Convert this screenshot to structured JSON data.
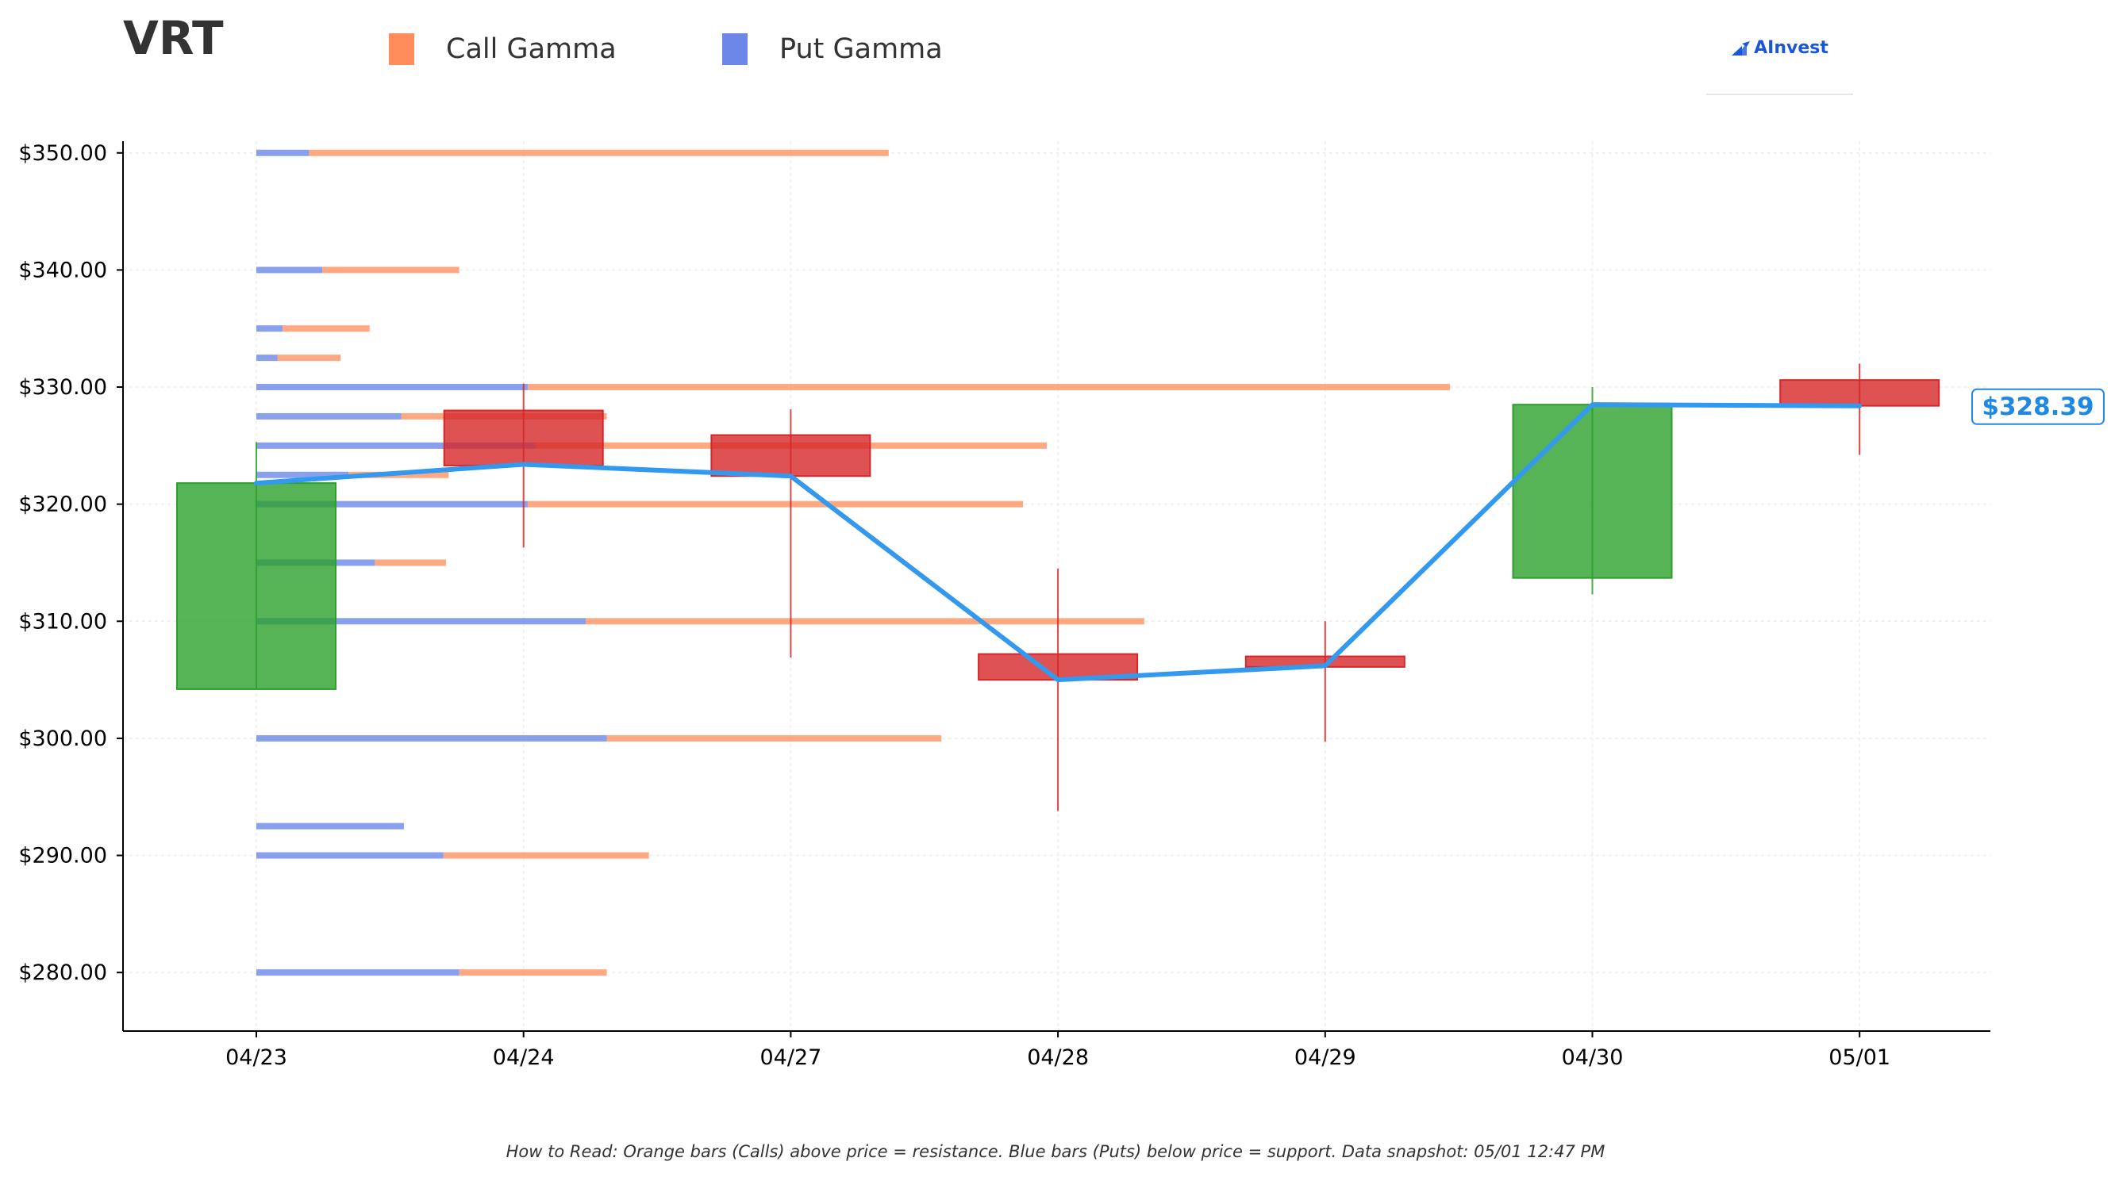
{
  "header": {
    "ticker": "VRT",
    "legend": [
      {
        "label": "Call Gamma",
        "color": "#ff8c5a"
      },
      {
        "label": "Put Gamma",
        "color": "#6b88e8"
      }
    ],
    "logo_text": "AInvest"
  },
  "footnote": "How to Read: Orange bars (Calls) above price = resistance. Blue bars (Puts) below price = support. Data snapshot: 05/01 12:47 PM",
  "chart_data": {
    "type": "candlestick",
    "categories": [
      "04/23",
      "04/24",
      "04/27",
      "04/28",
      "04/29",
      "04/30",
      "05/01"
    ],
    "ylim": [
      275,
      351
    ],
    "yticks": [
      280,
      290,
      300,
      310,
      320,
      330,
      340,
      350
    ],
    "ytick_labels": [
      "$280.00",
      "$290.00",
      "$300.00",
      "$310.00",
      "$320.00",
      "$330.00",
      "$340.00",
      "$350.00"
    ],
    "grid": true,
    "colors": {
      "up": "#2ca02c",
      "down": "#d62728",
      "line": "#3399ee",
      "call": "#ff8c5a",
      "put": "#6b88e8",
      "label": "#1e88e5"
    },
    "candles": [
      {
        "date": "04/23",
        "open": 304.2,
        "close": 321.8,
        "high": 325.3,
        "low": 304.2
      },
      {
        "date": "04/24",
        "open": 328.0,
        "close": 323.3,
        "high": 330.3,
        "low": 316.3
      },
      {
        "date": "04/27",
        "open": 325.9,
        "close": 322.4,
        "high": 328.1,
        "low": 306.9
      },
      {
        "date": "04/28",
        "open": 307.2,
        "close": 305.0,
        "high": 314.5,
        "low": 293.8
      },
      {
        "date": "04/29",
        "open": 307.0,
        "close": 306.1,
        "high": 310.0,
        "low": 299.7
      },
      {
        "date": "04/30",
        "open": 313.7,
        "close": 328.5,
        "high": 330.0,
        "low": 312.3
      },
      {
        "date": "05/01",
        "open": 330.6,
        "close": 328.4,
        "high": 332.0,
        "low": 324.2
      }
    ],
    "price_line": [
      321.8,
      323.4,
      322.4,
      305.0,
      306.2,
      328.5,
      328.39
    ],
    "current_price_label": "$328.39",
    "gamma_bars": [
      {
        "strike": 350.0,
        "put": 0.2,
        "call": 2.2
      },
      {
        "strike": 340.0,
        "put": 0.25,
        "call": 0.52
      },
      {
        "strike": 335.0,
        "put": 0.1,
        "call": 0.33
      },
      {
        "strike": 332.5,
        "put": 0.08,
        "call": 0.24
      },
      {
        "strike": 330.0,
        "put": 1.03,
        "call": 3.5
      },
      {
        "strike": 327.5,
        "put": 0.55,
        "call": 0.78
      },
      {
        "strike": 325.0,
        "put": 1.06,
        "call": 1.94
      },
      {
        "strike": 322.5,
        "put": 0.35,
        "call": 0.38
      },
      {
        "strike": 320.0,
        "put": 1.03,
        "call": 1.88
      },
      {
        "strike": 315.0,
        "put": 0.45,
        "call": 0.27
      },
      {
        "strike": 310.0,
        "put": 1.25,
        "call": 2.12
      },
      {
        "strike": 300.0,
        "put": 1.33,
        "call": 1.27
      },
      {
        "strike": 292.5,
        "put": 0.56,
        "call": 0.0
      },
      {
        "strike": 290.0,
        "put": 0.71,
        "call": 0.78
      },
      {
        "strike": 280.0,
        "put": 0.77,
        "call": 0.56
      }
    ]
  }
}
